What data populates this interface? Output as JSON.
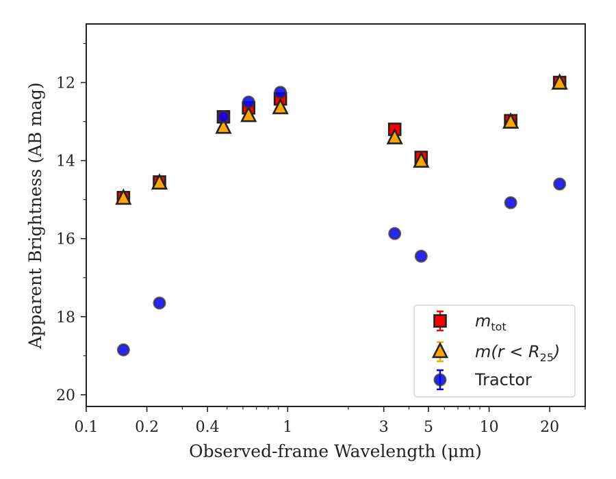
{
  "chart_data": {
    "type": "scatter",
    "title": "",
    "xlabel": "Observed-frame Wavelength (μm)",
    "ylabel": "Apparent Brightness (AB mag)",
    "xscale": "log",
    "xlim": [
      0.1,
      30
    ],
    "ylim": [
      20.3,
      10.5
    ],
    "y_inverted": true,
    "x_major_ticks": [
      {
        "value": 0.1,
        "label": "0.1"
      },
      {
        "value": 0.2,
        "label": "0.2"
      },
      {
        "value": 0.4,
        "label": "0.4"
      },
      {
        "value": 1,
        "label": "1"
      },
      {
        "value": 3,
        "label": "3"
      },
      {
        "value": 5,
        "label": "5"
      },
      {
        "value": 10,
        "label": "10"
      },
      {
        "value": 20,
        "label": "20"
      }
    ],
    "y_major_ticks": [
      {
        "value": 12,
        "label": "12"
      },
      {
        "value": 14,
        "label": "14"
      },
      {
        "value": 16,
        "label": "16"
      },
      {
        "value": 18,
        "label": "18"
      },
      {
        "value": 20,
        "label": "20"
      }
    ],
    "grid": false,
    "legend": {
      "position": "lower-right"
    },
    "series": [
      {
        "name": "m_tot",
        "label_main": "m",
        "label_sub": "tot",
        "marker": "square",
        "color": "#ff0000",
        "points": [
          {
            "x": 0.153,
            "y": 14.95
          },
          {
            "x": 0.231,
            "y": 14.55
          },
          {
            "x": 0.48,
            "y": 12.88
          },
          {
            "x": 0.64,
            "y": 12.65
          },
          {
            "x": 0.92,
            "y": 12.42
          },
          {
            "x": 3.4,
            "y": 13.2
          },
          {
            "x": 4.6,
            "y": 13.92
          },
          {
            "x": 12.8,
            "y": 12.98
          },
          {
            "x": 22.4,
            "y": 12.0
          }
        ]
      },
      {
        "name": "m(r<R_25)",
        "label_main": "m(r < R",
        "label_sub": "25",
        "label_end": ")",
        "marker": "triangle",
        "color": "#ffa500",
        "points": [
          {
            "x": 0.153,
            "y": 14.97
          },
          {
            "x": 0.231,
            "y": 14.58
          },
          {
            "x": 0.48,
            "y": 13.15
          },
          {
            "x": 0.64,
            "y": 12.85
          },
          {
            "x": 0.92,
            "y": 12.65
          },
          {
            "x": 3.4,
            "y": 13.42
          },
          {
            "x": 4.6,
            "y": 14.02
          },
          {
            "x": 12.8,
            "y": 13.02
          },
          {
            "x": 22.4,
            "y": 12.02
          }
        ]
      },
      {
        "name": "Tractor",
        "label_main": "Tractor",
        "marker": "circle",
        "color": "#0000ff",
        "points": [
          {
            "x": 0.153,
            "y": 18.85
          },
          {
            "x": 0.231,
            "y": 17.65
          },
          {
            "x": 0.48,
            "y": 12.88
          },
          {
            "x": 0.64,
            "y": 12.5
          },
          {
            "x": 0.92,
            "y": 12.25
          },
          {
            "x": 3.4,
            "y": 15.87
          },
          {
            "x": 4.6,
            "y": 16.45
          },
          {
            "x": 12.8,
            "y": 15.08
          },
          {
            "x": 22.4,
            "y": 14.6
          }
        ]
      }
    ]
  }
}
